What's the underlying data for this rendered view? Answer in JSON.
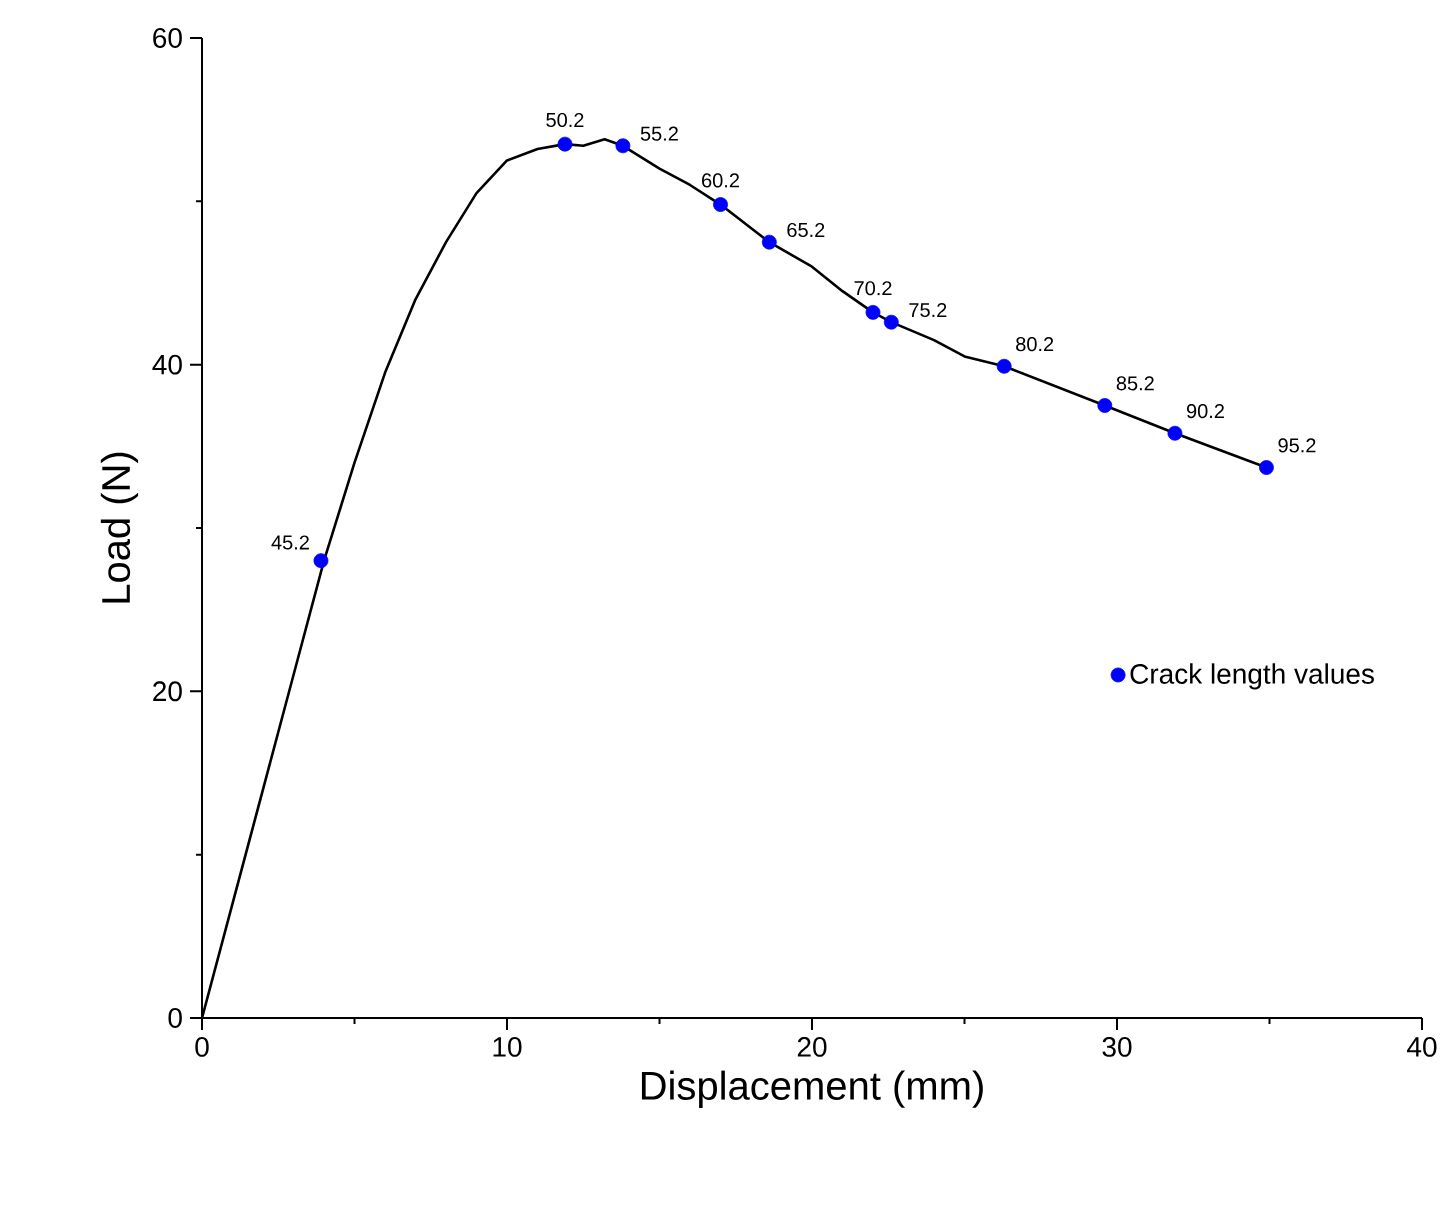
{
  "chart_data": {
    "type": "line",
    "xlabel": "Displacement (mm)",
    "ylabel": "Load (N)",
    "xlim": [
      0,
      40
    ],
    "ylim": [
      0,
      60
    ],
    "xticks": [
      0,
      10,
      20,
      30,
      40
    ],
    "yticks": [
      0,
      20,
      40,
      60
    ],
    "legend": "right",
    "series": [
      {
        "color": "#000000",
        "marker": "none",
        "x": [
          0,
          1,
          2,
          3,
          4,
          5,
          6,
          7,
          8,
          9,
          10,
          11,
          11.9,
          12.5,
          13.2,
          13.8,
          15,
          16,
          17,
          18.6,
          20,
          21,
          22,
          22.6,
          24,
          25,
          26.3,
          29.6,
          31.9,
          34.9
        ],
        "values": [
          0,
          7,
          14,
          21,
          28,
          34,
          39.5,
          44,
          47.5,
          50.5,
          52.5,
          53.2,
          53.5,
          53.4,
          53.8,
          53.4,
          52,
          51,
          49.8,
          47.5,
          46,
          44.5,
          43.2,
          42.6,
          41.5,
          40.5,
          39.9,
          37.5,
          35.8,
          33.7
        ]
      },
      {
        "type": "scatter",
        "name": "Crack length values",
        "color": "#0000ff",
        "marker": "circle",
        "x": [
          3.9,
          11.9,
          13.8,
          17.0,
          18.6,
          22.0,
          22.6,
          26.3,
          29.6,
          31.9,
          34.9
        ],
        "values": [
          28.0,
          53.5,
          53.4,
          49.8,
          47.5,
          43.2,
          42.6,
          39.9,
          37.5,
          35.8,
          33.7
        ]
      }
    ],
    "annotations": [
      {
        "text": "45.2",
        "x": 3.9,
        "y": 28.0
      },
      {
        "text": "50.2",
        "x": 11.9,
        "y": 53.5
      },
      {
        "text": "55.2",
        "x": 13.8,
        "y": 53.4
      },
      {
        "text": "60.2",
        "x": 17.0,
        "y": 49.8
      },
      {
        "text": "65.2",
        "x": 18.6,
        "y": 47.5
      },
      {
        "text": "70.2",
        "x": 22.0,
        "y": 43.2
      },
      {
        "text": "75.2",
        "x": 22.6,
        "y": 42.6
      },
      {
        "text": "80.2",
        "x": 26.3,
        "y": 39.9
      },
      {
        "text": "85.2",
        "x": 29.6,
        "y": 37.5
      },
      {
        "text": "90.2",
        "x": 31.9,
        "y": 35.8
      },
      {
        "text": "95.2",
        "x": 34.9,
        "y": 33.7
      }
    ]
  }
}
